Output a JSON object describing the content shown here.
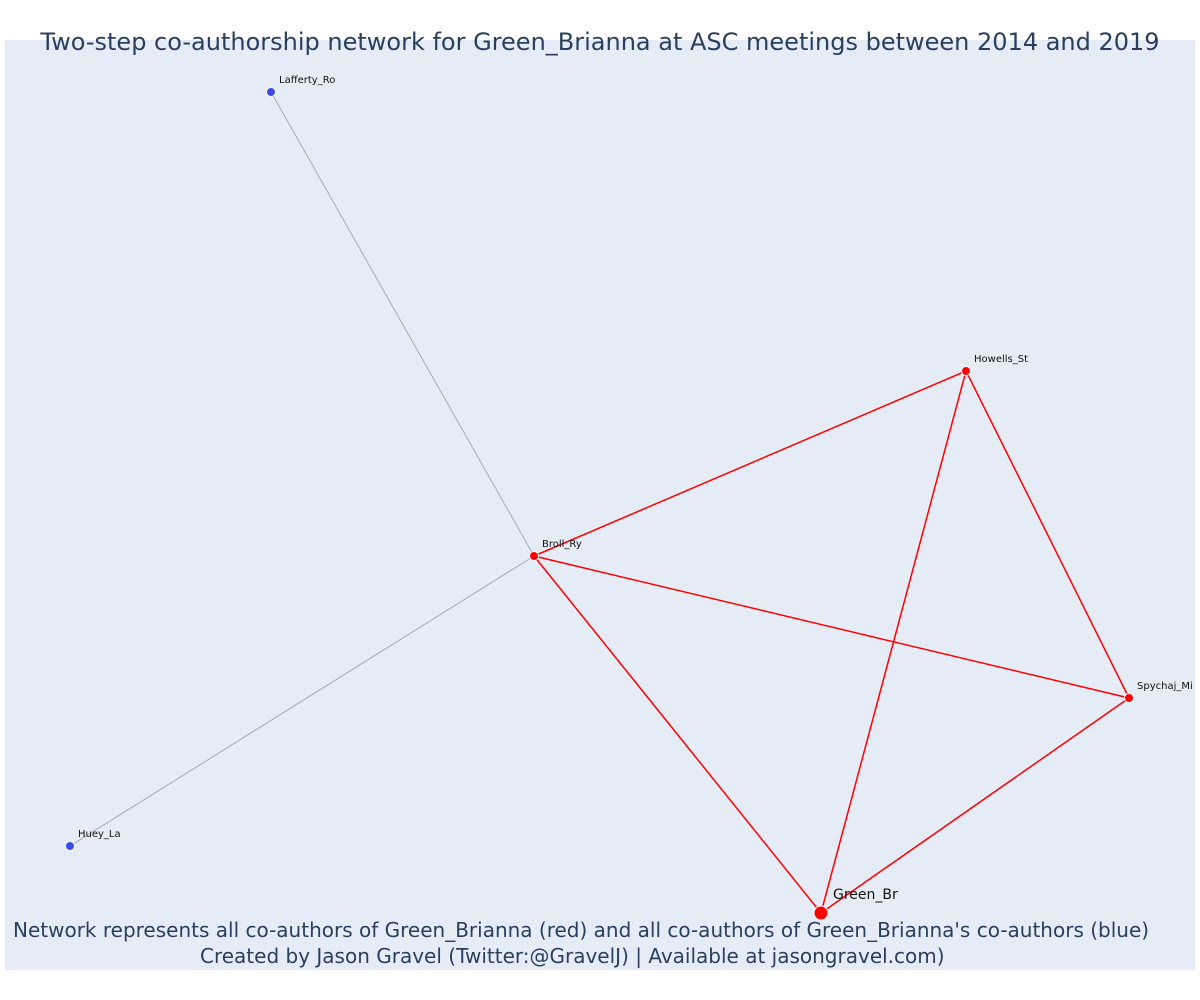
{
  "title": "Two-step co-authorship network for Green_Brianna at ASC meetings between 2014 and 2019",
  "caption": {
    "line1": "Network represents all co-authors of Green_Brianna (red) and all co-authors of Green_Brianna's co-authors (blue)",
    "line2": "Created by Jason Gravel (Twitter:@GravelJ) | Available at jasongravel.com)"
  },
  "colors": {
    "plot_background": "#e5ecf6",
    "red": "#ff0000",
    "blue": "#3c4be8",
    "grey_edge": "#a9a9b8",
    "text": "#2a3f5f"
  },
  "nodes": [
    {
      "id": "Green_Br",
      "label": "Green_Br",
      "group": "ego",
      "color": "red"
    },
    {
      "id": "Broll_Ry",
      "label": "Broll_Ry",
      "group": "coauthor",
      "color": "red"
    },
    {
      "id": "Howells_St",
      "label": "Howells_St",
      "group": "coauthor",
      "color": "red"
    },
    {
      "id": "Spychaj_Mi",
      "label": "Spychaj_Mi",
      "group": "coauthor",
      "color": "red"
    },
    {
      "id": "Lafferty_Ro",
      "label": "Lafferty_Ro",
      "group": "second-step",
      "color": "blue"
    },
    {
      "id": "Huey_La",
      "label": "Huey_La",
      "group": "second-step",
      "color": "blue"
    }
  ],
  "edges": [
    {
      "source": "Green_Br",
      "target": "Broll_Ry",
      "color": "red"
    },
    {
      "source": "Green_Br",
      "target": "Howells_St",
      "color": "red"
    },
    {
      "source": "Green_Br",
      "target": "Spychaj_Mi",
      "color": "red"
    },
    {
      "source": "Broll_Ry",
      "target": "Howells_St",
      "color": "red"
    },
    {
      "source": "Broll_Ry",
      "target": "Spychaj_Mi",
      "color": "red"
    },
    {
      "source": "Howells_St",
      "target": "Spychaj_Mi",
      "color": "red"
    },
    {
      "source": "Broll_Ry",
      "target": "Lafferty_Ro",
      "color": "grey"
    },
    {
      "source": "Broll_Ry",
      "target": "Huey_La",
      "color": "grey"
    }
  ]
}
